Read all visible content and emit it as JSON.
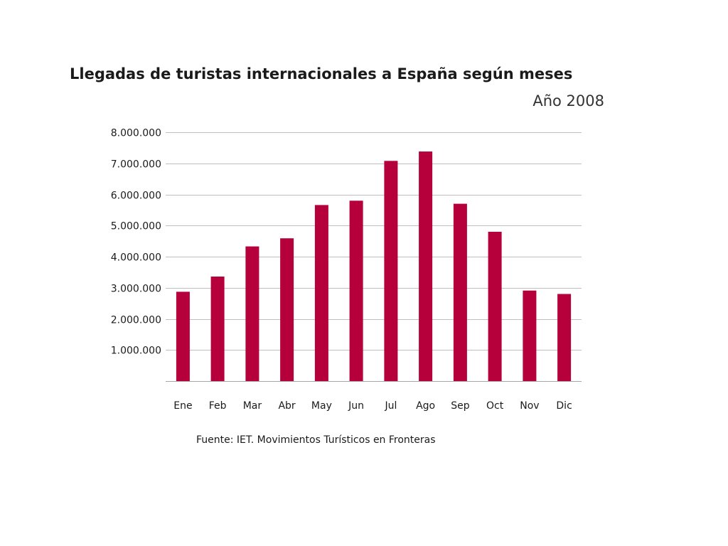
{
  "chart_data": {
    "type": "bar",
    "title": "Llegadas de turistas internacionales a España según meses",
    "subtitle": "Año 2008",
    "source": "Fuente: IET. Movimientos Turísticos en Fronteras",
    "categories": [
      "Ene",
      "Feb",
      "Mar",
      "Abr",
      "May",
      "Jun",
      "Jul",
      "Ago",
      "Sep",
      "Oct",
      "Nov",
      "Dic"
    ],
    "values": [
      2870000,
      3360000,
      4330000,
      4590000,
      5660000,
      5800000,
      7080000,
      7380000,
      5700000,
      4800000,
      2910000,
      2800000
    ],
    "ylim": [
      0,
      8000000
    ],
    "yticks": [
      {
        "value": 1000000,
        "label": "1.000.000"
      },
      {
        "value": 2000000,
        "label": "2.000.000"
      },
      {
        "value": 3000000,
        "label": "3.000.000"
      },
      {
        "value": 4000000,
        "label": "4.000.000"
      },
      {
        "value": 5000000,
        "label": "5.000.000"
      },
      {
        "value": 6000000,
        "label": "6.000.000"
      },
      {
        "value": 7000000,
        "label": "7.000.000"
      },
      {
        "value": 8000000,
        "label": "8.000.000"
      }
    ],
    "grid": true,
    "legend": "none",
    "bar_color": "#b5003b",
    "grid_color": "#bfbfbf"
  }
}
